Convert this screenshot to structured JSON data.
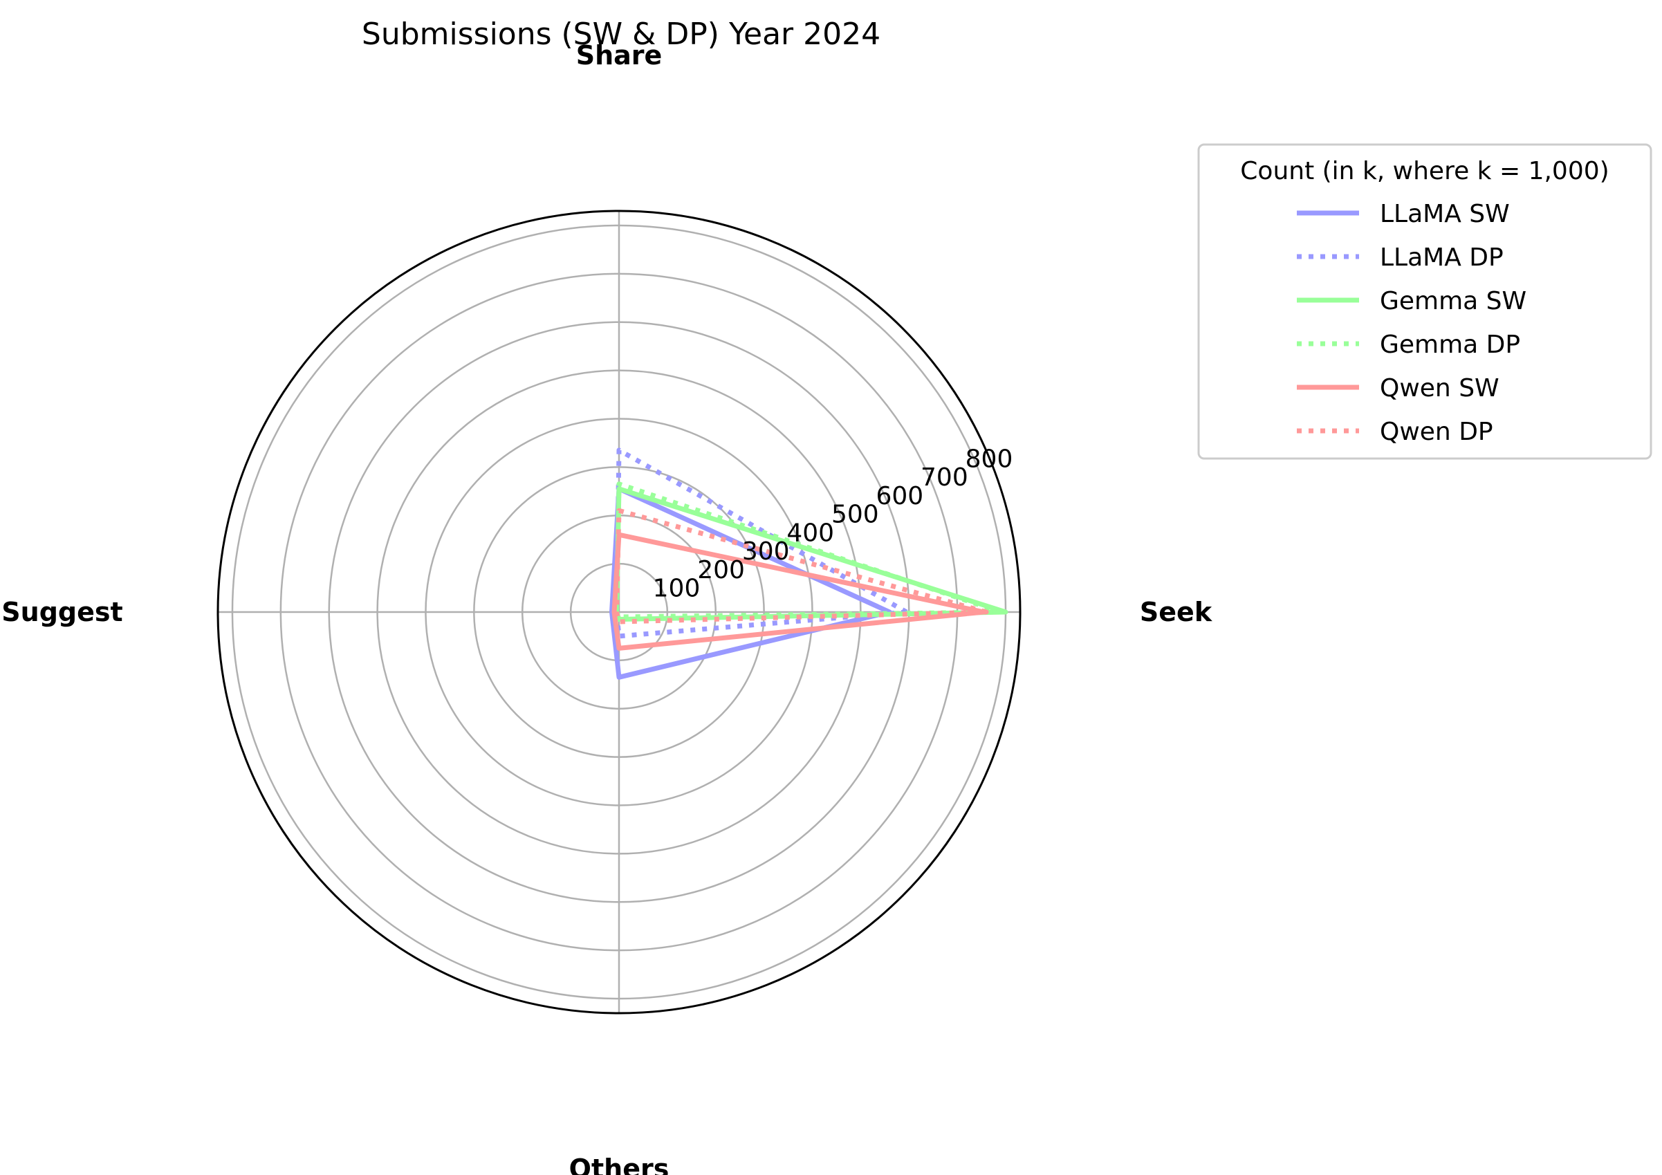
{
  "chart_data": {
    "type": "radar",
    "title": "Submissions (SW & DP) Year 2024",
    "categories": [
      "Seek",
      "Share",
      "Suggest",
      "Others"
    ],
    "r_ticks": [
      "100",
      "200",
      "300",
      "400",
      "500",
      "600",
      "700",
      "800"
    ],
    "r_tick_values": [
      100,
      200,
      300,
      400,
      500,
      600,
      700,
      800
    ],
    "rlim": [
      0,
      830
    ],
    "grid": true,
    "legend": {
      "title": "Count (in k, where k = 1,000)",
      "placement": "top-right outside"
    },
    "series": [
      {
        "name": "LLaMA SW",
        "style": "solid",
        "color": "#9999ff",
        "values": [
          560,
          255,
          15,
          135
        ]
      },
      {
        "name": "LLaMA DP",
        "style": "dotted",
        "color": "#9999ff",
        "values": [
          595,
          335,
          5,
          50
        ]
      },
      {
        "name": "Gemma SW",
        "style": "solid",
        "color": "#99ff99",
        "values": [
          800,
          255,
          5,
          15
        ]
      },
      {
        "name": "Gemma DP",
        "style": "dotted",
        "color": "#99ff99",
        "values": [
          790,
          265,
          5,
          10
        ]
      },
      {
        "name": "Qwen SW",
        "style": "solid",
        "color": "#ff9999",
        "values": [
          755,
          160,
          10,
          75
        ]
      },
      {
        "name": "Qwen DP",
        "style": "dotted",
        "color": "#ff9999",
        "values": [
          760,
          210,
          5,
          20
        ]
      }
    ]
  }
}
